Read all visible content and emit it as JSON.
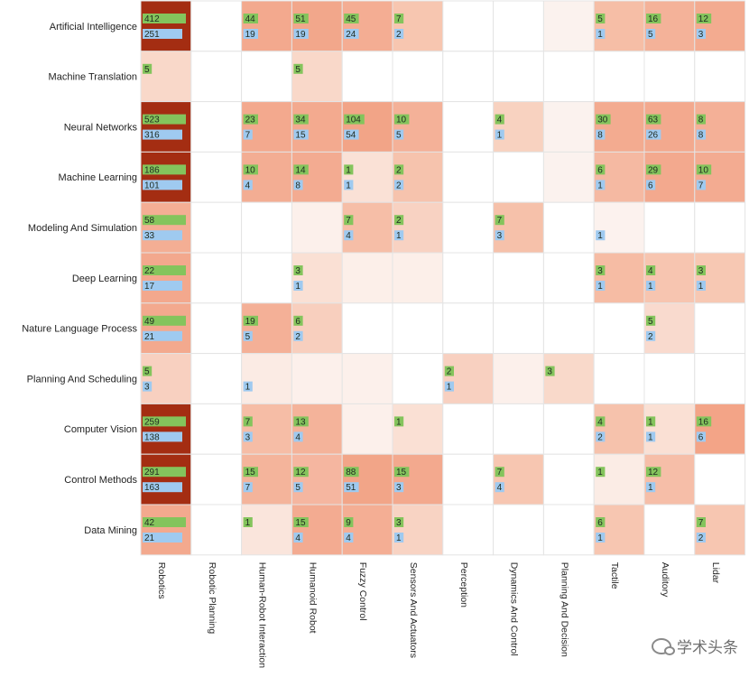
{
  "chart_data": {
    "type": "heatmap",
    "rows": [
      "Artificial Intelligence",
      "Machine Translation",
      "Neural Networks",
      "Machine Learning",
      "Modeling And Simulation",
      "Deep Learning",
      "Nature Language Process",
      "Planning And Scheduling",
      "Computer Vision",
      "Control Methods",
      "Data Mining"
    ],
    "columns": [
      "Robotics",
      "Robotic Planning",
      "Human-Robot Interaction",
      "Humanoid Robot",
      "Fuzzy Control",
      "Sensors And Actuators",
      "Perception",
      "Dynamics And Control",
      "Planning And Decision",
      "Tactile",
      "Auditory",
      "Lidar"
    ],
    "green_values": [
      [
        412,
        null,
        44,
        51,
        45,
        7,
        null,
        null,
        null,
        5,
        16,
        12
      ],
      [
        5,
        null,
        null,
        5,
        null,
        null,
        null,
        null,
        null,
        null,
        null,
        null
      ],
      [
        523,
        null,
        23,
        34,
        104,
        10,
        null,
        4,
        null,
        30,
        63,
        8
      ],
      [
        186,
        null,
        10,
        14,
        1,
        2,
        null,
        null,
        null,
        6,
        29,
        10
      ],
      [
        58,
        null,
        null,
        null,
        7,
        2,
        null,
        7,
        null,
        null,
        null,
        null
      ],
      [
        22,
        null,
        null,
        3,
        null,
        null,
        null,
        null,
        null,
        3,
        4,
        3
      ],
      [
        49,
        null,
        19,
        6,
        null,
        null,
        null,
        null,
        null,
        null,
        5,
        null
      ],
      [
        5,
        null,
        null,
        null,
        null,
        null,
        2,
        null,
        3,
        null,
        null,
        null
      ],
      [
        259,
        null,
        7,
        13,
        null,
        1,
        null,
        null,
        null,
        4,
        1,
        16
      ],
      [
        291,
        null,
        15,
        12,
        88,
        15,
        null,
        7,
        null,
        1,
        12,
        null
      ],
      [
        42,
        null,
        1,
        15,
        9,
        3,
        null,
        null,
        null,
        6,
        null,
        7
      ]
    ],
    "blue_values": [
      [
        251,
        null,
        19,
        19,
        24,
        2,
        null,
        null,
        null,
        1,
        5,
        3
      ],
      [
        null,
        null,
        null,
        null,
        null,
        null,
        null,
        null,
        null,
        null,
        null,
        null
      ],
      [
        316,
        null,
        7,
        15,
        54,
        5,
        null,
        1,
        null,
        8,
        26,
        8
      ],
      [
        101,
        null,
        4,
        8,
        1,
        2,
        null,
        null,
        null,
        1,
        6,
        7
      ],
      [
        33,
        null,
        null,
        null,
        4,
        1,
        null,
        3,
        null,
        1,
        null,
        null
      ],
      [
        17,
        null,
        null,
        1,
        null,
        null,
        null,
        null,
        null,
        1,
        1,
        1
      ],
      [
        21,
        null,
        5,
        2,
        null,
        null,
        null,
        null,
        null,
        null,
        2,
        null
      ],
      [
        3,
        null,
        1,
        null,
        null,
        null,
        1,
        null,
        null,
        null,
        null,
        null
      ],
      [
        138,
        null,
        3,
        4,
        null,
        null,
        null,
        null,
        null,
        2,
        1,
        6
      ],
      [
        163,
        null,
        7,
        5,
        51,
        3,
        null,
        4,
        null,
        null,
        1,
        null
      ],
      [
        21,
        null,
        null,
        4,
        4,
        1,
        null,
        null,
        null,
        1,
        null,
        2
      ]
    ],
    "cell_colors": [
      [
        "#a42d12",
        "#ffffff",
        "#f3a98e",
        "#f2a78b",
        "#f4ad93",
        "#f7c6b0",
        "#ffffff",
        "#ffffff",
        "#fbf2ee",
        "#f6bea6",
        "#f4b299",
        "#f3ab90"
      ],
      [
        "#f9d8c9",
        "#ffffff",
        "#ffffff",
        "#f9d8c9",
        "#ffffff",
        "#ffffff",
        "#ffffff",
        "#ffffff",
        "#ffffff",
        "#ffffff",
        "#ffffff",
        "#ffffff"
      ],
      [
        "#a42d12",
        "#ffffff",
        "#f3a98e",
        "#f3aa8f",
        "#f2a487",
        "#f4b198",
        "#ffffff",
        "#f8d2c0",
        "#fbf2ee",
        "#f3ab90",
        "#f3a98e",
        "#f4b097"
      ],
      [
        "#a42d12",
        "#ffffff",
        "#f3ad93",
        "#f3ab91",
        "#fae1d6",
        "#f6c3ad",
        "#ffffff",
        "#ffffff",
        "#fbf2ee",
        "#f5b9a2",
        "#f3a98e",
        "#f3ab91"
      ],
      [
        "#f4ae94",
        "#ffffff",
        "#ffffff",
        "#fcf0eb",
        "#f6bea7",
        "#f8d2c2",
        "#ffffff",
        "#f6c1aa",
        "#ffffff",
        "#fcf2ee",
        "#ffffff",
        "#ffffff"
      ],
      [
        "#f3a88d",
        "#ffffff",
        "#ffffff",
        "#fae0d4",
        "#fcefe9",
        "#fcefe9",
        "#ffffff",
        "#ffffff",
        "#ffffff",
        "#f6bca4",
        "#f7c5b0",
        "#f7c8b3"
      ],
      [
        "#f3a98e",
        "#ffffff",
        "#f4b097",
        "#f8cfbe",
        "#ffffff",
        "#ffffff",
        "#ffffff",
        "#ffffff",
        "#ffffff",
        "#ffffff",
        "#f9dace",
        "#ffffff"
      ],
      [
        "#f8d0c0",
        "#ffffff",
        "#fbebe4",
        "#fcf0eb",
        "#fcf0eb",
        "#ffffff",
        "#f8d0c0",
        "#fcf0eb",
        "#f9d9ca",
        "#ffffff",
        "#ffffff",
        "#ffffff"
      ],
      [
        "#a42d12",
        "#ffffff",
        "#f6bda6",
        "#f4b39a",
        "#fcf0eb",
        "#fae0d4",
        "#ffffff",
        "#ffffff",
        "#ffffff",
        "#f6c2ac",
        "#fae0d4",
        "#f3a487"
      ],
      [
        "#a42d12",
        "#ffffff",
        "#f4b49b",
        "#f5b6a0",
        "#f2a588",
        "#f3a98e",
        "#ffffff",
        "#f7c6b1",
        "#ffffff",
        "#fbece5",
        "#f6bea8",
        "#ffffff"
      ],
      [
        "#f3a98e",
        "#ffffff",
        "#fae5dc",
        "#f3ab91",
        "#f4ae94",
        "#f8d3c3",
        "#ffffff",
        "#ffffff",
        "#ffffff",
        "#f7c6b1",
        "#ffffff",
        "#f7c6b1"
      ]
    ],
    "label_colors": {
      "green": "#84c45c",
      "blue": "#9fcaf0"
    }
  },
  "watermark": {
    "text": "学术头条",
    "icon": "wechat-icon"
  }
}
